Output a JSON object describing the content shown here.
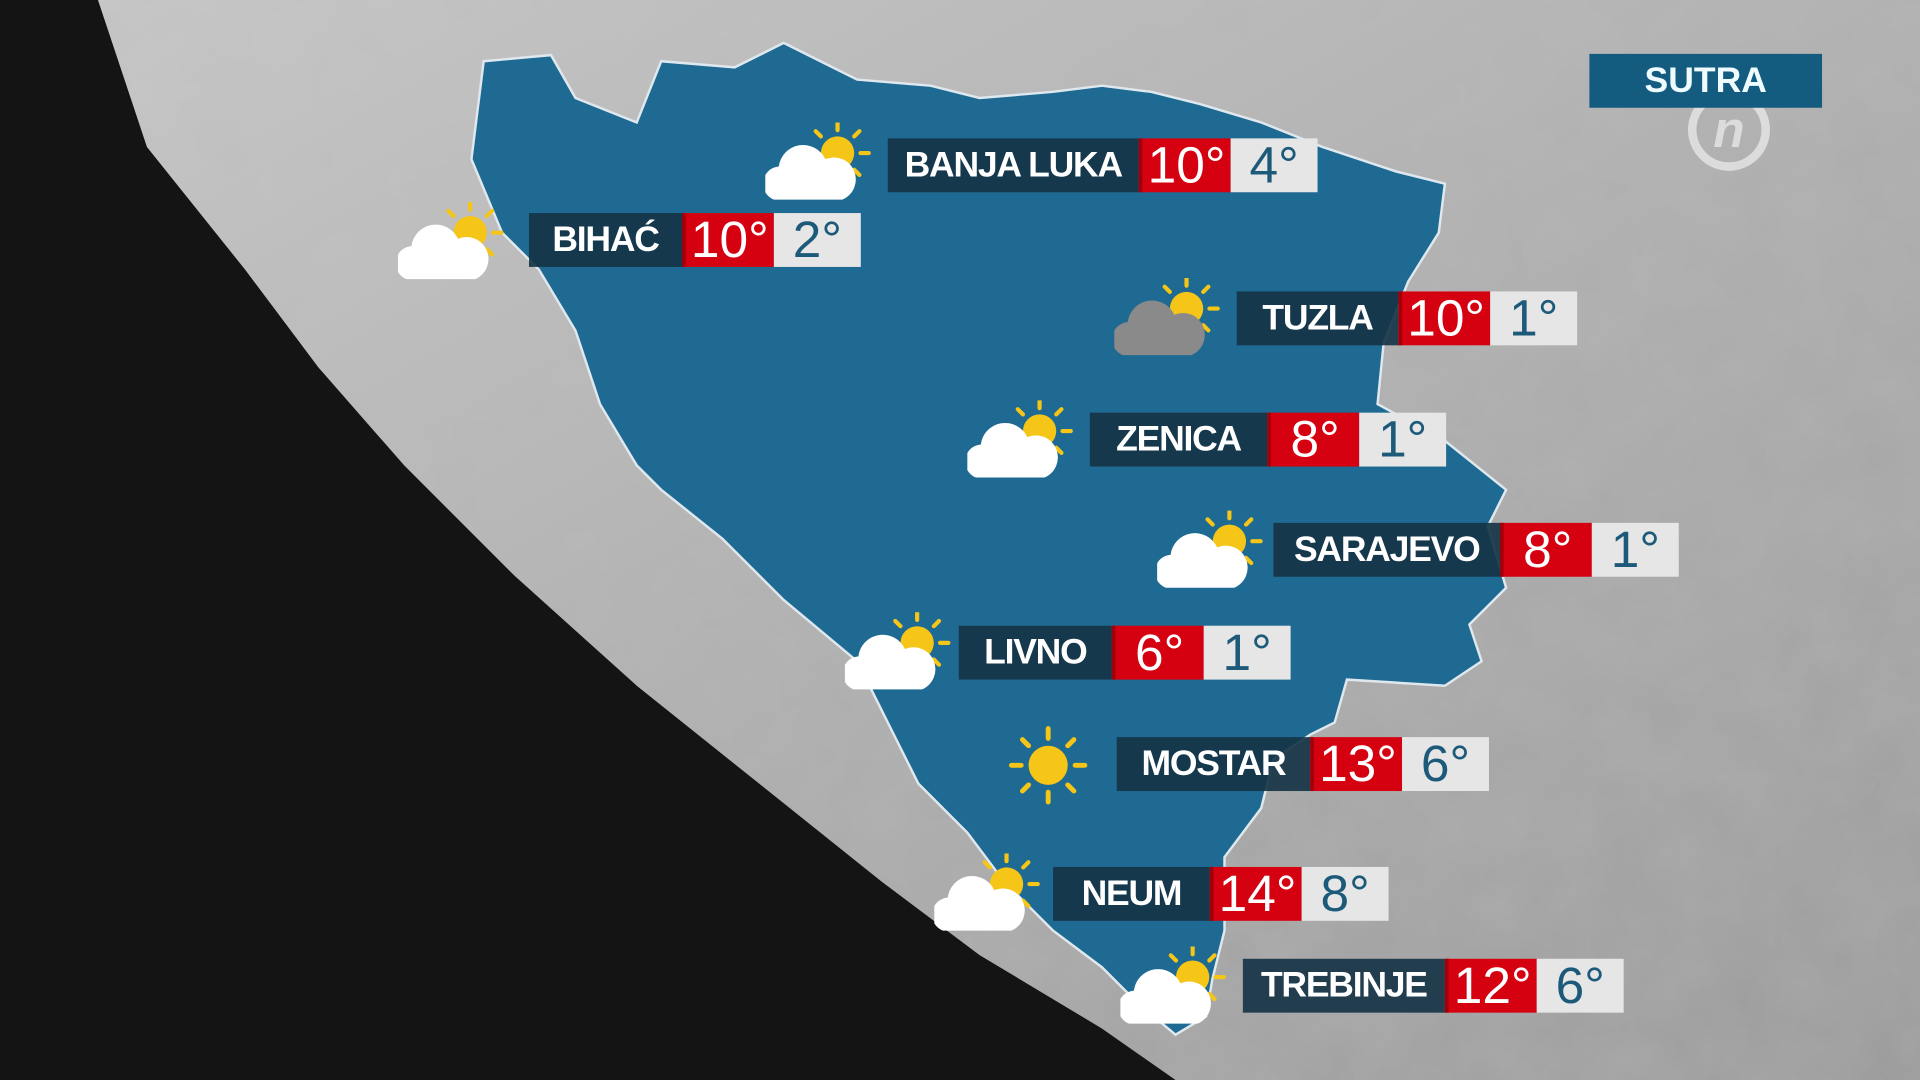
{
  "header": {
    "period_label": "SUTRA"
  },
  "logo": {
    "text": "n"
  },
  "colors": {
    "map_fill": "#1f6a92",
    "high_bg": "#d50010",
    "low_text": "#1d5a7a",
    "name_bg": "#163446",
    "period_bg": "#145b80"
  },
  "cities": [
    {
      "name": "BANJA LUKA",
      "high": "10°",
      "low": "4°",
      "icon": "sun-behind-cloud-icon"
    },
    {
      "name": "BIHAĆ",
      "high": "10°",
      "low": "2°",
      "icon": "sun-behind-cloud-icon"
    },
    {
      "name": "TUZLA",
      "high": "10°",
      "low": "1°",
      "icon": "sun-behind-dark-cloud-icon"
    },
    {
      "name": "ZENICA",
      "high": "8°",
      "low": "1°",
      "icon": "sun-behind-cloud-icon"
    },
    {
      "name": "SARAJEVO",
      "high": "8°",
      "low": "1°",
      "icon": "sun-behind-cloud-icon"
    },
    {
      "name": "LIVNO",
      "high": "6°",
      "low": "1°",
      "icon": "sun-behind-cloud-icon"
    },
    {
      "name": "MOSTAR",
      "high": "13°",
      "low": "6°",
      "icon": "sun-icon"
    },
    {
      "name": "NEUM",
      "high": "14°",
      "low": "8°",
      "icon": "sun-behind-cloud-icon"
    },
    {
      "name": "TREBINJE",
      "high": "12°",
      "low": "6°",
      "icon": "sun-behind-cloud-icon"
    }
  ]
}
